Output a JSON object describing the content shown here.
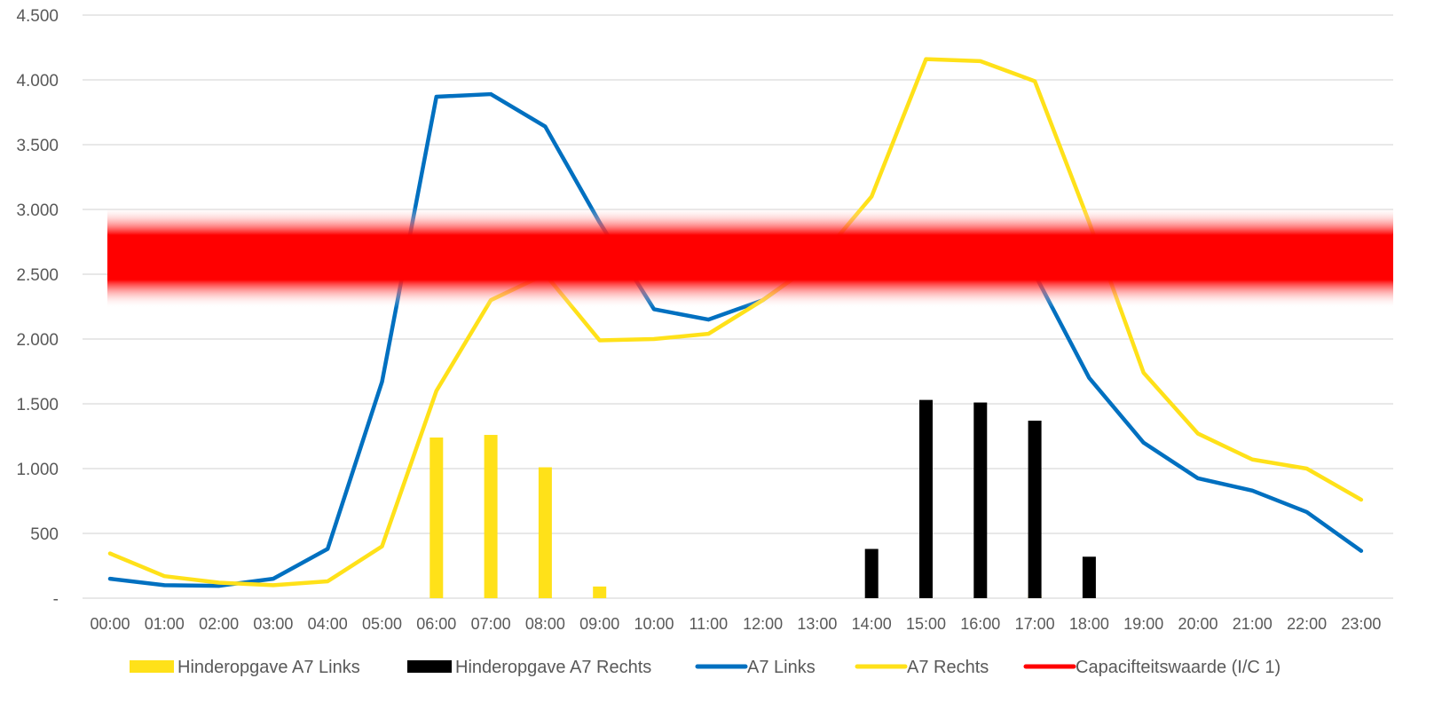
{
  "chart_data": {
    "type": "bar",
    "categories": [
      "00:00",
      "01:00",
      "02:00",
      "03:00",
      "04:00",
      "05:00",
      "06:00",
      "07:00",
      "08:00",
      "09:00",
      "10:00",
      "11:00",
      "12:00",
      "13:00",
      "14:00",
      "15:00",
      "16:00",
      "17:00",
      "18:00",
      "19:00",
      "20:00",
      "21:00",
      "22:00",
      "23:00"
    ],
    "y_ticks": [
      {
        "value": 0,
        "label": "-"
      },
      {
        "value": 500,
        "label": "500"
      },
      {
        "value": 1000,
        "label": "1.000"
      },
      {
        "value": 1500,
        "label": "1.500"
      },
      {
        "value": 2000,
        "label": "2.000"
      },
      {
        "value": 2500,
        "label": "2.500"
      },
      {
        "value": 3000,
        "label": "3.000"
      },
      {
        "value": 3500,
        "label": "3.500"
      },
      {
        "value": 4000,
        "label": "4.000"
      },
      {
        "value": 4500,
        "label": "4.500"
      }
    ],
    "ylim": [
      0,
      4500
    ],
    "grid": true,
    "legend_position": "bottom",
    "series": [
      {
        "name": "Hinderopgave A7 Links",
        "kind": "bar",
        "color": "#FFE119",
        "values": [
          0,
          0,
          0,
          0,
          0,
          0,
          1240,
          1260,
          1010,
          90,
          0,
          0,
          0,
          0,
          0,
          0,
          0,
          25,
          0,
          0,
          0,
          0,
          0,
          0
        ]
      },
      {
        "name": "Hinderopgave A7 Rechts",
        "kind": "bar",
        "color": "#000000",
        "values": [
          0,
          0,
          0,
          0,
          0,
          0,
          0,
          0,
          0,
          0,
          0,
          0,
          0,
          0,
          380,
          1530,
          1510,
          1370,
          320,
          0,
          0,
          0,
          0,
          0
        ]
      },
      {
        "name": "A7 Links",
        "kind": "line",
        "color": "#0070C0",
        "values": [
          150,
          100,
          95,
          150,
          380,
          1670,
          3870,
          3890,
          3640,
          2900,
          2230,
          2150,
          2300,
          2600,
          2650,
          2700,
          2750,
          2500,
          1700,
          1200,
          925,
          830,
          665,
          365
        ]
      },
      {
        "name": "A7 Rechts",
        "kind": "line",
        "color": "#FFE119",
        "values": [
          345,
          170,
          120,
          100,
          130,
          400,
          1600,
          2300,
          2500,
          1990,
          2000,
          2040,
          2300,
          2600,
          3100,
          4160,
          4145,
          3990,
          2900,
          1740,
          1270,
          1070,
          1000,
          760
        ]
      },
      {
        "name": "Capacifteitswaarde (I/C 1)",
        "kind": "line",
        "color": "#FF0000",
        "values": [
          2630,
          2630,
          2630,
          2630,
          2630,
          2630,
          2630,
          2630,
          2630,
          2630,
          2630,
          2630,
          2630,
          2630,
          2630,
          2630,
          2630,
          2630,
          2630,
          2630,
          2630,
          2630,
          2630,
          2630
        ]
      }
    ]
  }
}
